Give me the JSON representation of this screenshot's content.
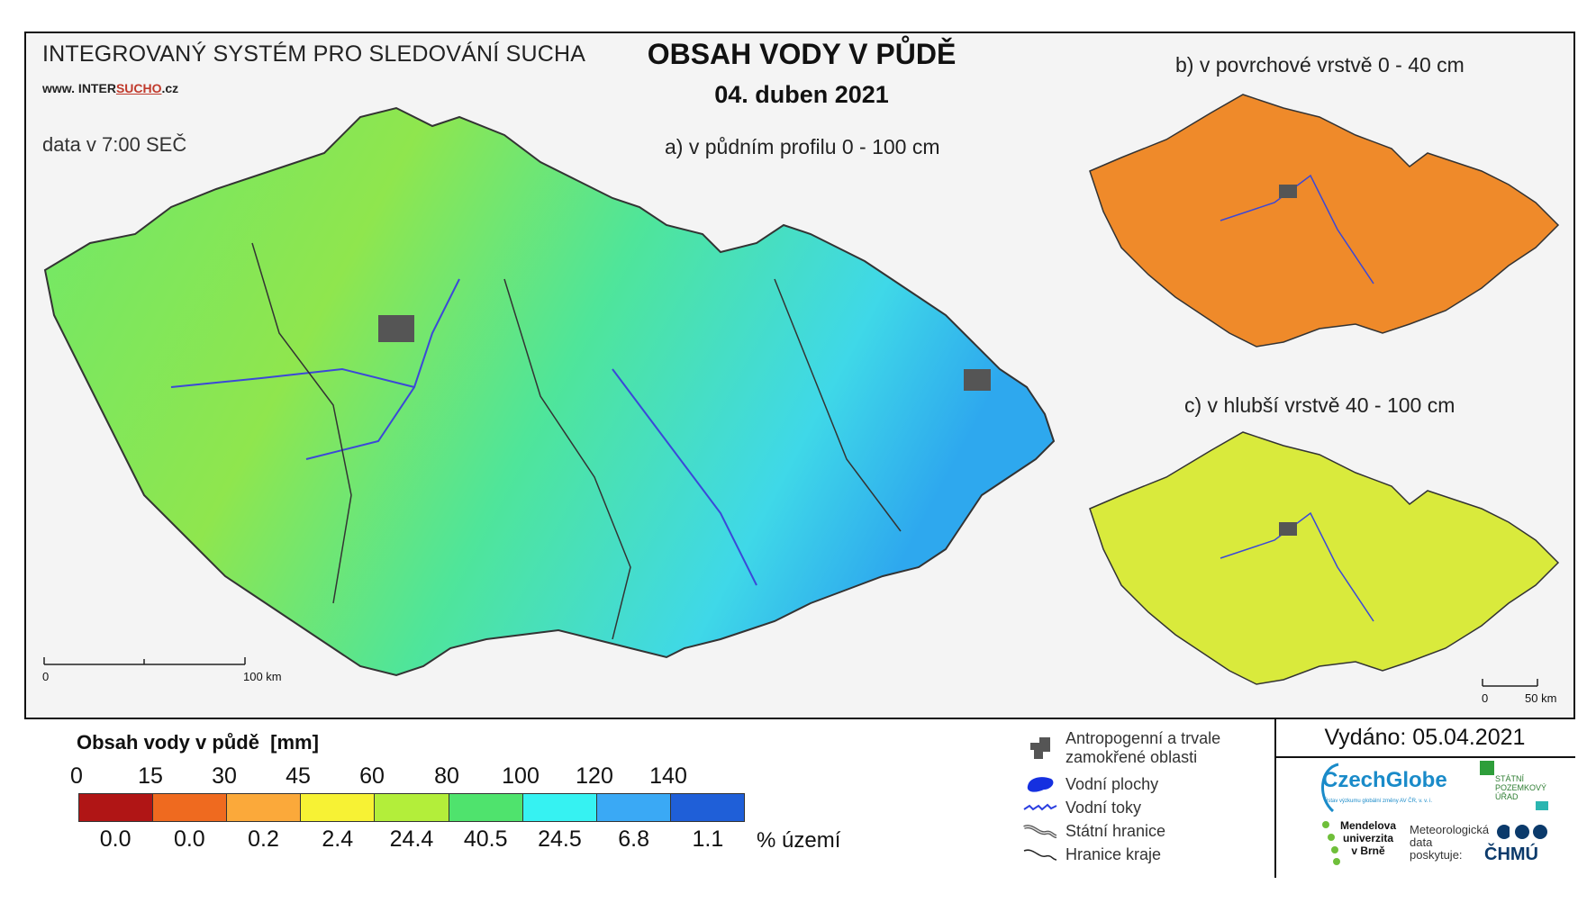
{
  "header": {
    "system_title": "INTEGROVANÝ SYSTÉM PRO SLEDOVÁNÍ SUCHA",
    "url_prefix": "www. INTER",
    "url_sucho": "SUCHO",
    "url_suffix": ".cz",
    "data_time": "data v 7:00 SEČ",
    "main_title": "OBSAH VODY V PŮDĚ",
    "date": "04. duben 2021"
  },
  "maps": {
    "a_label": "a) v půdním profilu 0 - 100 cm",
    "b_label": "b) v povrchové vrstvě 0 - 40 cm",
    "c_label": "c) v hlubší vrstvě 40 - 100 cm",
    "scale_main": {
      "start": "0",
      "end": "100 km"
    },
    "scale_small": {
      "start": "0",
      "end": "50 km"
    },
    "map_a_dominant_color": "#5ee37a",
    "map_b_dominant_color": "#f08a24",
    "map_c_dominant_color": "#d6ea3a"
  },
  "legend": {
    "title": "Obsah vody v půdě",
    "unit": "[mm]",
    "ticks": [
      "0",
      "15",
      "30",
      "45",
      "60",
      "80",
      "100",
      "120",
      "140"
    ],
    "colors": [
      "#b01515",
      "#ef6a1f",
      "#fba93a",
      "#f7f234",
      "#b3ee3a",
      "#4fe36d",
      "#36f2f2",
      "#3aa9f5",
      "#1f5fd8"
    ],
    "percents": [
      "0.0",
      "0.0",
      "0.2",
      "2.4",
      "24.4",
      "40.5",
      "24.5",
      "6.8",
      "1.1"
    ],
    "percent_label": "% území"
  },
  "symbols": [
    {
      "icon": "urban-area-icon",
      "text_line1": "Antropogenní a trvale",
      "text_line2": "zamokřené oblasti"
    },
    {
      "icon": "water-body-icon",
      "text_line1": "Vodní plochy",
      "text_line2": ""
    },
    {
      "icon": "river-icon",
      "text_line1": "Vodní toky",
      "text_line2": ""
    },
    {
      "icon": "state-border-icon",
      "text_line1": "Státní hranice",
      "text_line2": ""
    },
    {
      "icon": "region-border-icon",
      "text_line1": "Hranice kraje",
      "text_line2": ""
    }
  ],
  "footer": {
    "issued": "Vydáno: 05.04.2021",
    "czechglobe": "CzechGlobe",
    "czechglobe_sub": "Ústav výzkumu globální změny AV ČR, v. v. i.",
    "spu_line1": "STÁTNÍ",
    "spu_line2": "POZEMKOVÝ",
    "spu_line3": "ÚŘAD",
    "mendel_line1": "Mendelova",
    "mendel_line2": "univerzita",
    "mendel_line3": "v Brně",
    "meteo_line1": "Meteorologická",
    "meteo_line2": "data",
    "meteo_line3": "poskytuje:",
    "chmu": "ČHMÚ"
  }
}
